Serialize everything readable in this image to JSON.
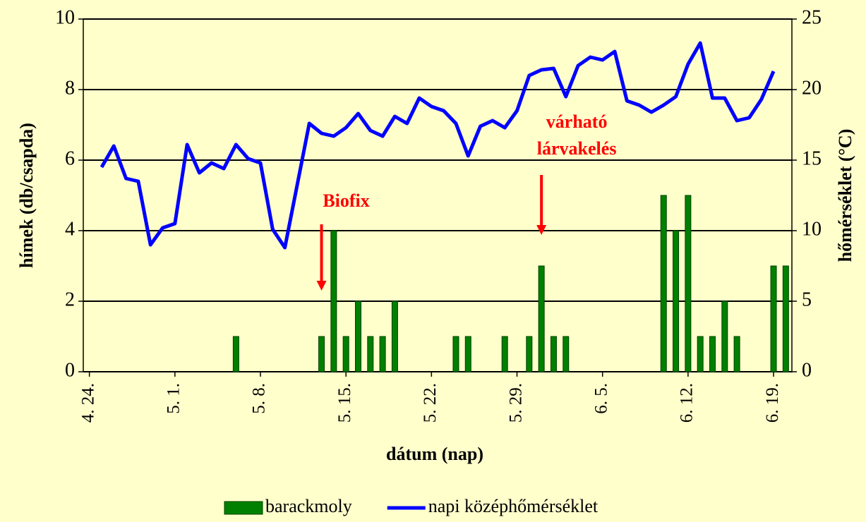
{
  "chart_data": {
    "type": "bar",
    "xlabel": "dátum (nap)",
    "ylabel": "hímek (db/csapda)",
    "y2label": "hőmérséklet (°C)",
    "categories": [
      "4. 24.",
      null,
      null,
      null,
      null,
      null,
      null,
      "5. 1.",
      null,
      null,
      null,
      null,
      null,
      null,
      "5. 8.",
      null,
      null,
      null,
      null,
      null,
      null,
      "5. 15.",
      null,
      null,
      null,
      null,
      null,
      null,
      "5. 22.",
      null,
      null,
      null,
      null,
      null,
      null,
      "5. 29.",
      null,
      null,
      null,
      null,
      null,
      null,
      "6. 5.",
      null,
      null,
      null,
      null,
      null,
      null,
      "6. 12.",
      null,
      null,
      null,
      null,
      null,
      null,
      "6. 19.",
      null
    ],
    "series": [
      {
        "name": "barackmoly",
        "type": "bar",
        "color": "#008000",
        "values": [
          0,
          0,
          0,
          0,
          0,
          0,
          0,
          0,
          0,
          0,
          0,
          0,
          1,
          0,
          0,
          0,
          0,
          0,
          0,
          1,
          4,
          1,
          2,
          1,
          1,
          2,
          0,
          0,
          0,
          0,
          1,
          1,
          0,
          0,
          1,
          0,
          1,
          3,
          1,
          1,
          0,
          0,
          0,
          0,
          0,
          0,
          0,
          5,
          4,
          5,
          1,
          1,
          2,
          1,
          0,
          0,
          3,
          3
        ]
      },
      {
        "name": "napi középhőmérséklet",
        "type": "line",
        "axis": "y2",
        "color": "#0000ff",
        "values": [
          null,
          14.5,
          16.0,
          13.7,
          13.5,
          9.0,
          10.2,
          10.5,
          16.1,
          14.1,
          14.8,
          14.4,
          16.1,
          15.1,
          14.8,
          10.1,
          8.8,
          13.2,
          17.6,
          16.9,
          16.7,
          17.3,
          18.3,
          17.1,
          16.7,
          18.1,
          17.6,
          19.4,
          18.8,
          18.5,
          17.6,
          15.3,
          17.4,
          17.8,
          17.3,
          18.5,
          21.0,
          21.4,
          21.5,
          19.5,
          21.7,
          22.3,
          22.1,
          22.7,
          19.2,
          18.9,
          18.4,
          18.9,
          19.5,
          21.8,
          23.3,
          19.4,
          19.4,
          17.8,
          18.0,
          19.3,
          21.3,
          null
        ]
      }
    ],
    "ylim": [
      0,
      10
    ],
    "yticks": [
      0,
      2,
      4,
      6,
      8,
      10
    ],
    "y2lim": [
      0,
      25
    ],
    "y2ticks": [
      0,
      5,
      10,
      15,
      20,
      25
    ],
    "grid": true,
    "legend": "bottom",
    "annotations": [
      {
        "text": "Biofix",
        "category": 19
      },
      {
        "text": "várható",
        "category": 37
      },
      {
        "text": "lárvakelés",
        "category": 37
      }
    ]
  }
}
